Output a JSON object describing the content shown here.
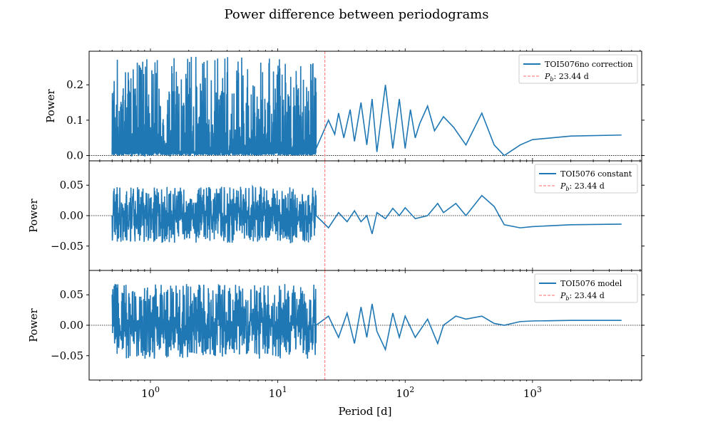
{
  "figure": {
    "title": "Power difference between periodograms",
    "xlabel": "Period [d]"
  },
  "chart_data": [
    {
      "type": "line",
      "panel": "top",
      "ylabel": "Power",
      "xscale": "log",
      "xlim": [
        0.33,
        7200
      ],
      "ylim": [
        -0.015,
        0.295
      ],
      "yticks": [
        0.0,
        0.1,
        0.2
      ],
      "ytick_labels": [
        "0.0",
        "0.1",
        "0.2"
      ],
      "xticks": [
        1,
        10,
        100,
        1000
      ],
      "xtick_labels": [
        "10^0",
        "10^1",
        "10^2",
        "10^3"
      ],
      "zero_line": "dotted black",
      "legend_position": "top-right",
      "series": [
        {
          "name": "TOI5076no correction",
          "color": "#1f77b4",
          "smooth_points": [
            [
              20,
              0.02
            ],
            [
              25,
              0.1
            ],
            [
              28,
              0.06
            ],
            [
              30,
              0.12
            ],
            [
              33,
              0.05
            ],
            [
              37,
              0.13
            ],
            [
              40,
              0.04
            ],
            [
              45,
              0.15
            ],
            [
              50,
              0.03
            ],
            [
              55,
              0.16
            ],
            [
              60,
              0.01
            ],
            [
              70,
              0.2
            ],
            [
              80,
              0.02
            ],
            [
              90,
              0.16
            ],
            [
              100,
              0.02
            ],
            [
              110,
              0.13
            ],
            [
              120,
              0.05
            ],
            [
              130,
              0.09
            ],
            [
              150,
              0.14
            ],
            [
              170,
              0.07
            ],
            [
              200,
              0.11
            ],
            [
              240,
              0.08
            ],
            [
              300,
              0.03
            ],
            [
              400,
              0.12
            ],
            [
              500,
              0.03
            ],
            [
              600,
              0.0
            ],
            [
              800,
              0.03
            ],
            [
              1000,
              0.045
            ],
            [
              2000,
              0.055
            ],
            [
              5000,
              0.058
            ]
          ],
          "noise_envelope": {
            "x_start": 0.5,
            "x_end": 20,
            "min": 0.0,
            "max": 0.28
          }
        },
        {
          "name": "$P_b$: 23.44 d",
          "type": "vline",
          "x": 23.44,
          "color": "#ff6b6b",
          "style": "dashed"
        }
      ]
    },
    {
      "type": "line",
      "panel": "middle",
      "ylabel": "Power",
      "xscale": "log",
      "xlim": [
        0.33,
        7200
      ],
      "ylim": [
        -0.09,
        0.09
      ],
      "yticks": [
        -0.05,
        0.0,
        0.05
      ],
      "ytick_labels": [
        "−0.05",
        "0.00",
        "0.05"
      ],
      "zero_line": "dotted black",
      "legend_position": "top-right",
      "series": [
        {
          "name": "TOI5076 constant",
          "color": "#1f77b4",
          "smooth_points": [
            [
              20,
              0.0
            ],
            [
              25,
              -0.02
            ],
            [
              30,
              0.005
            ],
            [
              35,
              -0.01
            ],
            [
              40,
              0.008
            ],
            [
              45,
              -0.01
            ],
            [
              50,
              0.0
            ],
            [
              55,
              -0.03
            ],
            [
              60,
              0.005
            ],
            [
              70,
              -0.005
            ],
            [
              80,
              0.012
            ],
            [
              90,
              0.0
            ],
            [
              100,
              0.013
            ],
            [
              120,
              -0.005
            ],
            [
              150,
              0.0
            ],
            [
              180,
              0.02
            ],
            [
              200,
              0.005
            ],
            [
              250,
              0.02
            ],
            [
              300,
              0.0
            ],
            [
              400,
              0.033
            ],
            [
              500,
              0.015
            ],
            [
              600,
              -0.015
            ],
            [
              800,
              -0.02
            ],
            [
              1000,
              -0.018
            ],
            [
              2000,
              -0.015
            ],
            [
              5000,
              -0.014
            ]
          ],
          "noise_envelope": {
            "x_start": 0.5,
            "x_end": 20,
            "min": -0.045,
            "max": 0.048
          }
        },
        {
          "name": "$P_b$: 23.44 d",
          "type": "vline",
          "x": 23.44,
          "color": "#ff6b6b",
          "style": "dashed"
        }
      ]
    },
    {
      "type": "line",
      "panel": "bottom",
      "ylabel": "Power",
      "xscale": "log",
      "xlim": [
        0.33,
        7200
      ],
      "ylim": [
        -0.09,
        0.09
      ],
      "yticks": [
        -0.05,
        0.0,
        0.05
      ],
      "ytick_labels": [
        "−0.05",
        "0.00",
        "0.05"
      ],
      "zero_line": "dotted black",
      "legend_position": "top-right",
      "series": [
        {
          "name": "TOI5076 model",
          "color": "#1f77b4",
          "smooth_points": [
            [
              20,
              0.0
            ],
            [
              25,
              0.015
            ],
            [
              30,
              -0.02
            ],
            [
              35,
              0.02
            ],
            [
              40,
              -0.03
            ],
            [
              45,
              0.03
            ],
            [
              50,
              -0.02
            ],
            [
              55,
              0.035
            ],
            [
              60,
              -0.01
            ],
            [
              70,
              -0.04
            ],
            [
              80,
              0.02
            ],
            [
              90,
              -0.02
            ],
            [
              100,
              0.015
            ],
            [
              120,
              -0.02
            ],
            [
              150,
              0.01
            ],
            [
              180,
              -0.03
            ],
            [
              200,
              0.0
            ],
            [
              250,
              0.015
            ],
            [
              300,
              0.01
            ],
            [
              400,
              0.015
            ],
            [
              500,
              0.003
            ],
            [
              600,
              0.0
            ],
            [
              800,
              0.006
            ],
            [
              1000,
              0.007
            ],
            [
              2000,
              0.008
            ],
            [
              5000,
              0.008
            ]
          ],
          "noise_envelope": {
            "x_start": 0.5,
            "x_end": 20,
            "min": -0.055,
            "max": 0.068
          }
        },
        {
          "name": "$P_b$: 23.44 d",
          "type": "vline",
          "x": 23.44,
          "color": "#ff6b6b",
          "style": "dashed"
        }
      ]
    }
  ]
}
